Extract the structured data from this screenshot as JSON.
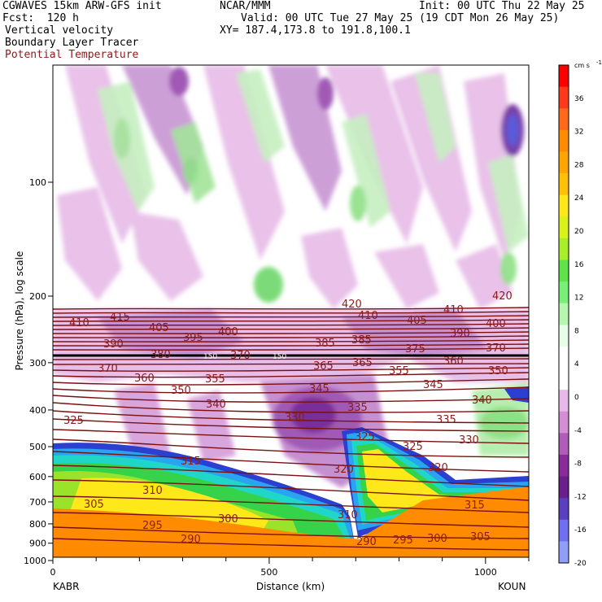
{
  "header": {
    "line1_left": "CGWAVES 15km ARW-GFS init",
    "line1_mid": "NCAR/MMM",
    "line1_right": "Init: 00 UTC Thu 22 May 25",
    "line2_left": "Fcst:  120 h",
    "line2_right": "Valid: 00 UTC Tue 27 May 25 (19 CDT Mon 26 May 25)",
    "line3_left": "Vertical velocity",
    "line3_right": "XY= 187.4,173.8 to 191.8,100.1",
    "line4_left": "Boundary Layer Tracer",
    "line5_left": "Potential Temperature"
  },
  "colors": {
    "theta_contour": "#7a1010",
    "label_text": "#8b1c1c"
  },
  "chart_data": {
    "type": "cross-section",
    "ylabel": "Pressure (hPa), log scale",
    "xlabel": "Distance (km)",
    "yscale": "log",
    "ylim": [
      1000,
      50
    ],
    "xlim": [
      0,
      1100
    ],
    "yticks": [
      100,
      200,
      300,
      400,
      500,
      600,
      700,
      800,
      900,
      1000
    ],
    "xticks": [
      0,
      500,
      1000
    ],
    "x_end_labels": {
      "left": "KABR",
      "right": "KOUN"
    },
    "colorbar": {
      "unit": "cm s",
      "unit_exp": "-1",
      "ticks": [
        36,
        32,
        28,
        24,
        20,
        16,
        12,
        8,
        4,
        0,
        -4,
        -8,
        -12,
        -16,
        -20
      ],
      "colors": [
        "#ff0000",
        "#ff3a1a",
        "#ff6a1a",
        "#ff8c00",
        "#ffa500",
        "#ffc107",
        "#ffe81a",
        "#d8f21a",
        "#a8ee2a",
        "#5fe24a",
        "#78f078",
        "#b6f7b0",
        "#e8fde8",
        "#ffffff",
        "#ffffff",
        "#e8b9e8",
        "#d48fd4",
        "#b05cb8",
        "#8a2b9a",
        "#6a1f8a",
        "#5a3fbf",
        "#6f6ff0",
        "#8f9ff7"
      ]
    },
    "theta_labels": [
      "420",
      "415",
      "410",
      "405",
      "400",
      "395",
      "390",
      "385",
      "380",
      "375",
      "370",
      "365",
      "360",
      "355",
      "350",
      "345",
      "340",
      "335",
      "330",
      "325",
      "320",
      "315",
      "310",
      "305",
      "300",
      "295",
      "290",
      "150"
    ]
  }
}
